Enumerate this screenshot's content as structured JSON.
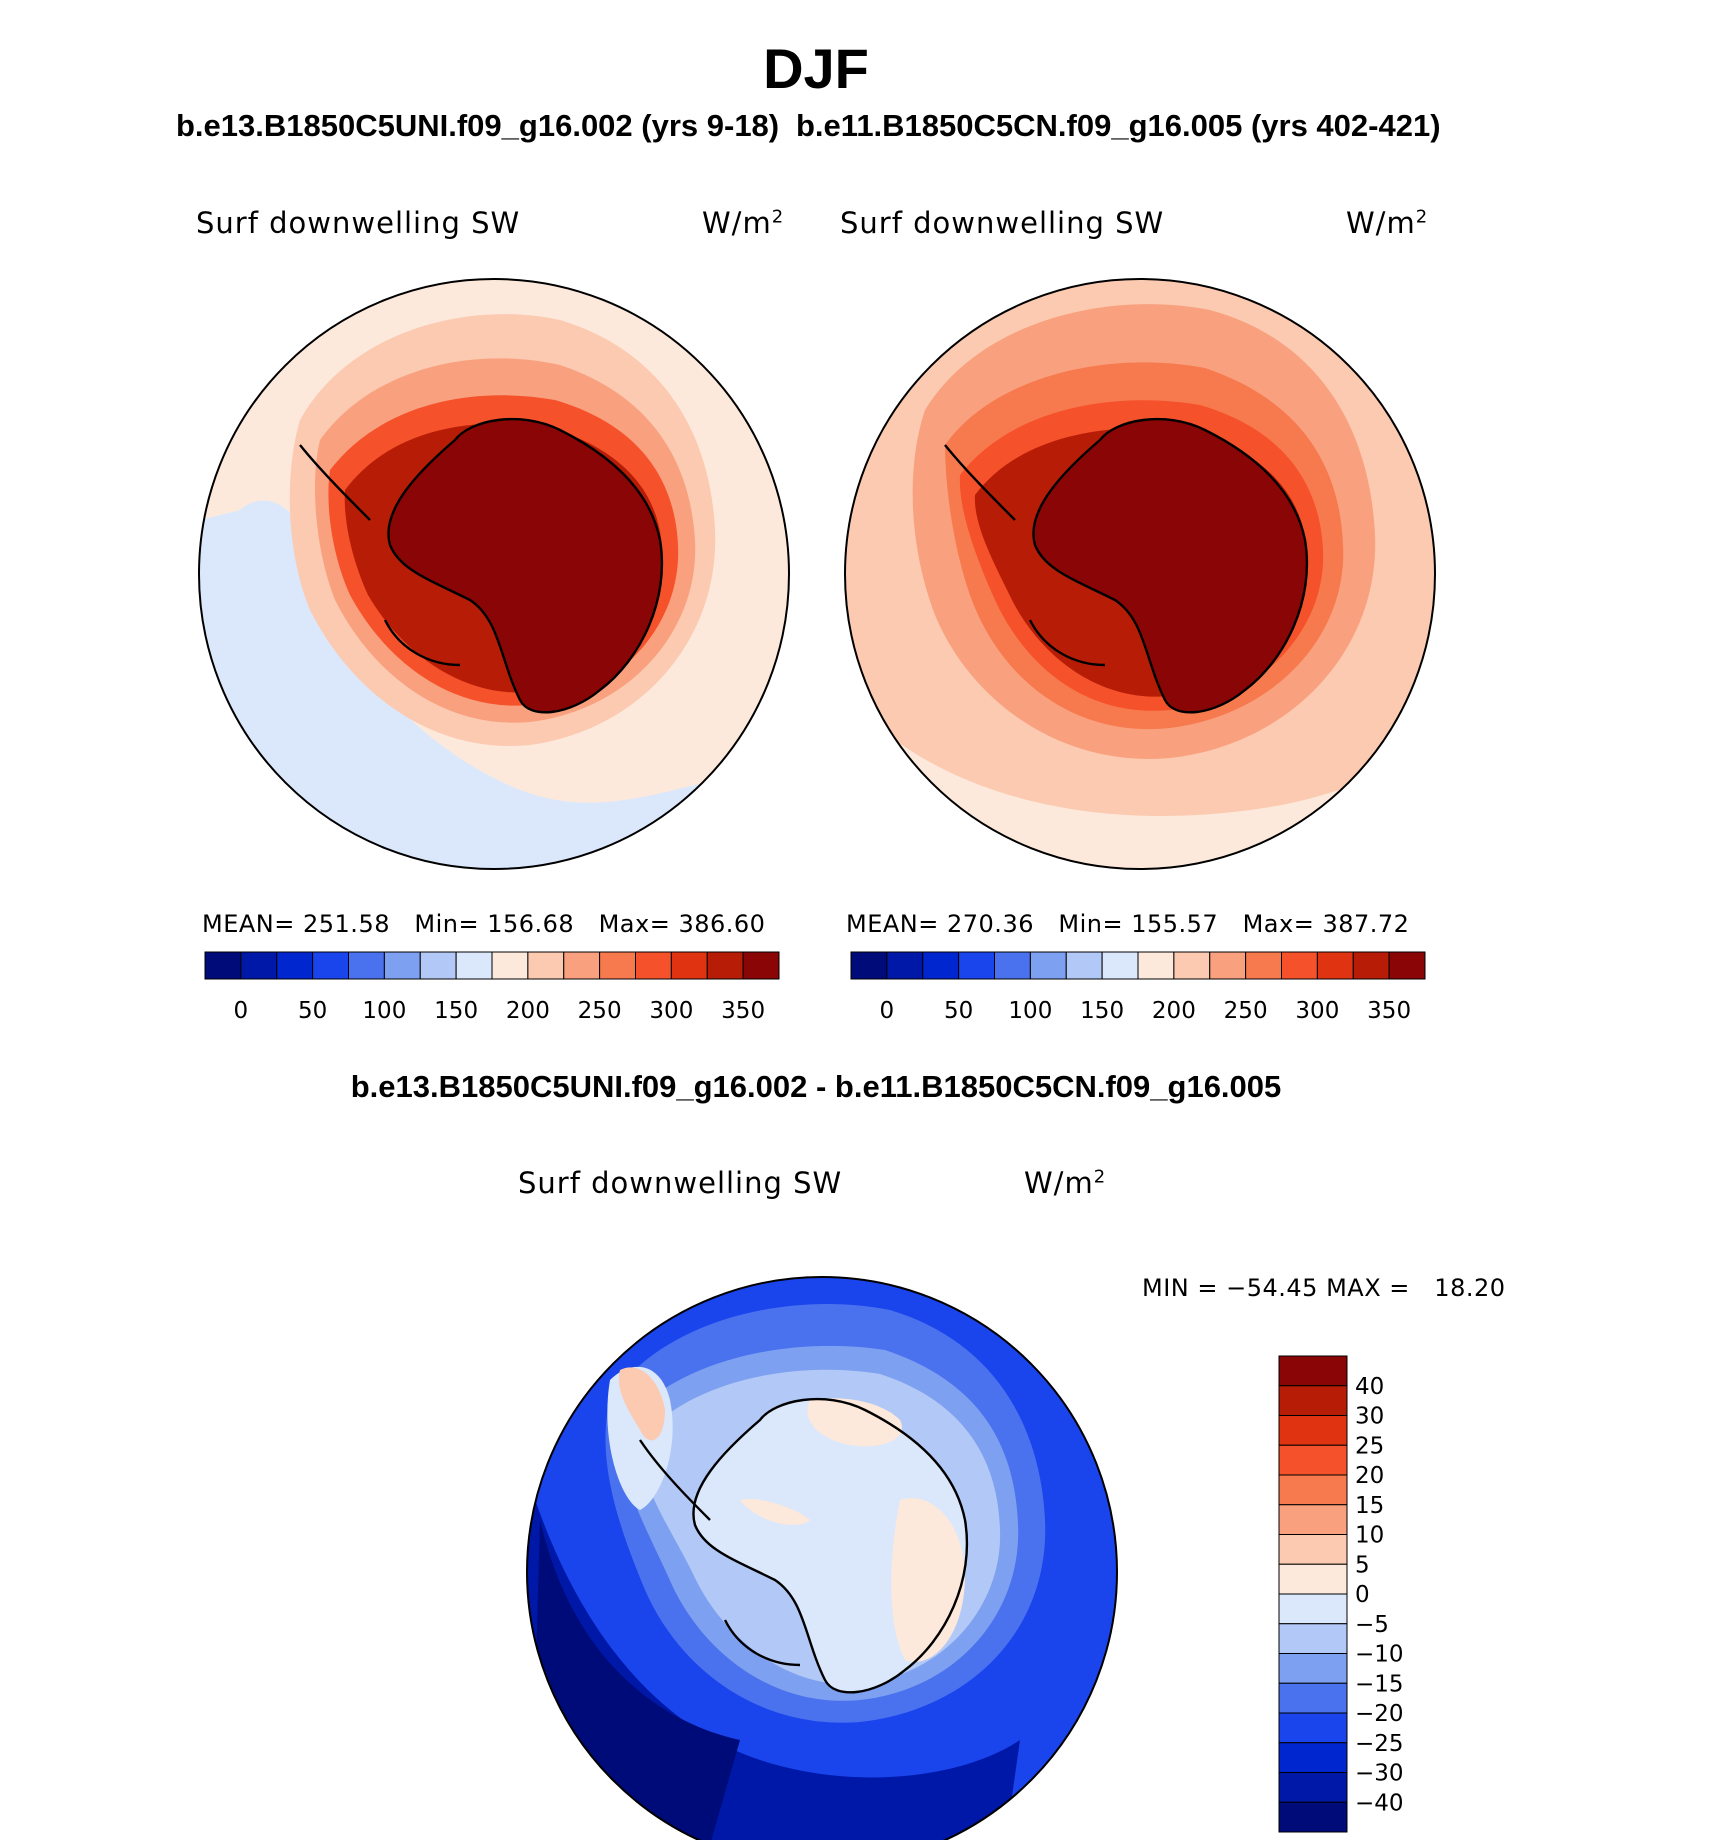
{
  "header": {
    "title": "DJF",
    "case1_title": "b.e13.B1850C5UNI.f09_g16.002 (yrs 9-18)",
    "case2_title": "b.e11.B1850C5CN.f09_g16.005 (yrs 402-421)",
    "diff_title": "b.e13.B1850C5UNI.f09_g16.002 - b.e11.B1850C5CN.f09_g16.005"
  },
  "chart_data": [
    {
      "type": "heatmap",
      "projection": "south-polar stereographic",
      "variable_label": "Surf downwelling SW",
      "units_base": "W/m",
      "units_exp": "2",
      "stats": {
        "mean_label": "MEAN=",
        "mean": "251.58",
        "min_label": "Min=",
        "min": "156.68",
        "max_label": "Max=",
        "max": "386.60"
      },
      "colorbar_ticks": [
        "0",
        "50",
        "100",
        "150",
        "200",
        "250",
        "300",
        "350"
      ],
      "colorbar_colors": [
        "#000b7a",
        "#0018a8",
        "#0026d0",
        "#1a44ec",
        "#4a72ee",
        "#7ea0f0",
        "#b2c8f6",
        "#dbe8fb",
        "#fde9db",
        "#fbcab1",
        "#f9a17f",
        "#f77a4f",
        "#f5512b",
        "#df3312",
        "#b71d06",
        "#8a0505"
      ]
    },
    {
      "type": "heatmap",
      "projection": "south-polar stereographic",
      "variable_label": "Surf downwelling SW",
      "units_base": "W/m",
      "units_exp": "2",
      "stats": {
        "mean_label": "MEAN=",
        "mean": "270.36",
        "min_label": "Min=",
        "min": "155.57",
        "max_label": "Max=",
        "max": "387.72"
      },
      "colorbar_ticks": [
        "0",
        "50",
        "100",
        "150",
        "200",
        "250",
        "300",
        "350"
      ],
      "colorbar_colors": [
        "#000b7a",
        "#0018a8",
        "#0026d0",
        "#1a44ec",
        "#4a72ee",
        "#7ea0f0",
        "#b2c8f6",
        "#dbe8fb",
        "#fde9db",
        "#fbcab1",
        "#f9a17f",
        "#f77a4f",
        "#f5512b",
        "#df3312",
        "#b71d06",
        "#8a0505"
      ]
    },
    {
      "type": "heatmap",
      "projection": "south-polar stereographic",
      "variable_label": "Surf downwelling SW",
      "units_base": "W/m",
      "units_exp": "2",
      "stats": {
        "min_label": "MIN =",
        "min": "−54.45",
        "max_label": "MAX =",
        "max": "18.20"
      },
      "colorbar_ticks": [
        "40",
        "30",
        "25",
        "20",
        "15",
        "10",
        "5",
        "0",
        "−5",
        "−10",
        "−15",
        "−20",
        "−25",
        "−30",
        "−40"
      ],
      "colorbar_colors": [
        "#8a0505",
        "#b71d06",
        "#df3312",
        "#f5512b",
        "#f77a4f",
        "#f9a17f",
        "#fbcab1",
        "#fde9db",
        "#dbe8fb",
        "#b2c8f6",
        "#7ea0f0",
        "#4a72ee",
        "#1a44ec",
        "#0026d0",
        "#0018a8",
        "#000b7a"
      ]
    }
  ]
}
